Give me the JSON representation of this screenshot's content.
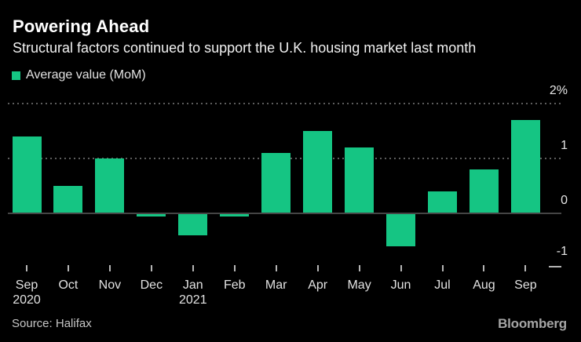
{
  "chart_data": {
    "type": "bar",
    "title": "Powering Ahead",
    "subtitle": "Structural factors continued to support the U.K. housing market last month",
    "series_name": "Average value (MoM)",
    "categories": [
      "Sep",
      "Oct",
      "Nov",
      "Dec",
      "Jan",
      "Feb",
      "Mar",
      "Apr",
      "May",
      "Jun",
      "Jul",
      "Aug",
      "Sep"
    ],
    "year_markers": [
      {
        "index": 0,
        "year": "2020"
      },
      {
        "index": 4,
        "year": "2021"
      }
    ],
    "values": [
      1.4,
      0.5,
      1.0,
      -0.05,
      -0.4,
      -0.05,
      1.1,
      1.5,
      1.2,
      -0.6,
      0.4,
      0.8,
      1.7
    ],
    "unit": "%",
    "ylim": [
      -1,
      2
    ],
    "yticks": [
      {
        "label": "2%",
        "value": 2
      },
      {
        "label": "1",
        "value": 1
      },
      {
        "label": "0",
        "value": 0
      },
      {
        "label": "-1",
        "value": -1
      }
    ],
    "grid": "dotted horizontal, labels on right",
    "legend_position": "top-left",
    "bar_color": "#15c583"
  },
  "footer": {
    "source": "Source: Halifax",
    "brand": "Bloomberg"
  }
}
